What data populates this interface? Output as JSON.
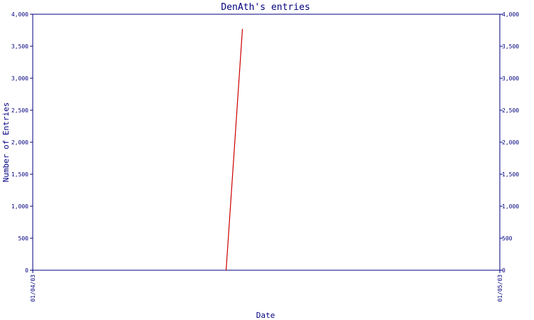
{
  "chart_data": {
    "type": "line",
    "title": "DenAth's entries",
    "xlabel": "Date",
    "ylabel": "Number of Entries",
    "ylim": [
      0,
      4000
    ],
    "yticks": [
      0,
      500,
      1000,
      1500,
      2000,
      2500,
      3000,
      3500,
      4000
    ],
    "ytick_labels": [
      "0",
      "500",
      "1,000",
      "1,500",
      "2,000",
      "2,500",
      "3,000",
      "3,500",
      "4,000"
    ],
    "xlim": [
      "01/04/03",
      "01/05/03"
    ],
    "xtick_labels": [
      "01/04/03",
      "01/05/03"
    ],
    "grid": false,
    "legend": "none",
    "series": [
      {
        "x": [
          "01/04/03",
          "01/04/03"
        ],
        "x_fraction": [
          0.414,
          0.449
        ],
        "values": [
          0,
          3770
        ]
      }
    ],
    "colors": {
      "axis": "#000080",
      "line": "#cc0000",
      "text": "#000080"
    }
  }
}
